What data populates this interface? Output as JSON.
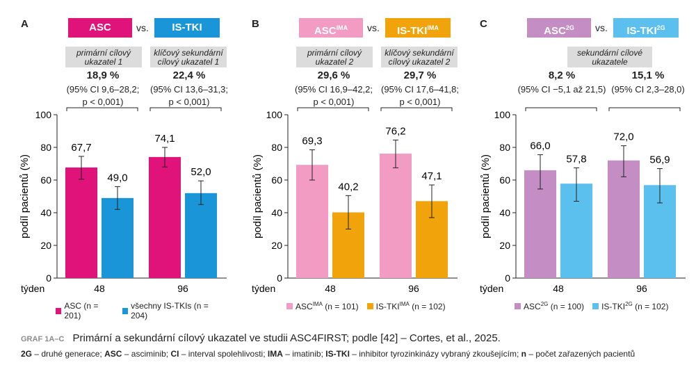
{
  "colors": {
    "asc": "#e0137a",
    "istki": "#1a96d8",
    "asc_ima": "#f29cc4",
    "istki_ima": "#f0a30a",
    "asc_2g": "#c48dc4",
    "istki_2g": "#5bc0ee"
  },
  "panels": [
    {
      "letter": "A",
      "left_tag": "ASC",
      "left_sup": "",
      "vs": "vs.",
      "right_tag": "IS-TKI",
      "right_sup": "",
      "endpoints": [
        {
          "label": "primární cílový ukazatel 1",
          "pct": "18,9 %",
          "ci": "(95% CI 9,6–28,2;",
          "p": "p < 0,001)"
        },
        {
          "label": "klíčový sekundární cílový ukazatel 1",
          "pct": "22,4 %",
          "ci": "(95% CI 13,6–31,3;",
          "p": "p < 0,001)"
        }
      ],
      "legend": [
        {
          "text": "ASC (n = 201)",
          "color_key": "asc"
        },
        {
          "text": "všechny IS-TKIs (n = 204)",
          "color_key": "istki"
        }
      ]
    },
    {
      "letter": "B",
      "left_tag": "ASC",
      "left_sup": "IMA",
      "vs": "vs.",
      "right_tag": "IS-TKI",
      "right_sup": "IMA",
      "endpoints": [
        {
          "label": "primární cílový ukazatel 2",
          "pct": "29,6 %",
          "ci": "(95% CI 16,9–42,2;",
          "p": "p < 0,001)"
        },
        {
          "label": "klíčový sekundární cílový ukazatel 2",
          "pct": "29,7 %",
          "ci": "(95% CI 17,6–41,8;",
          "p": "p < 0,001)"
        }
      ],
      "legend": [
        {
          "text": "ASC",
          "sup": "IMA",
          "rest": " (n = 101)",
          "color_key": "asc_ima"
        },
        {
          "text": "IS-TKI",
          "sup": "IMA",
          "rest": " (n = 102)",
          "color_key": "istki_ima"
        }
      ]
    },
    {
      "letter": "C",
      "left_tag": "ASC",
      "left_sup": "2G",
      "vs": "vs.",
      "right_tag": "IS-TKI",
      "right_sup": "2G",
      "endpoints": [
        {
          "label": "sekundární cílové ukazatele",
          "pct": "8,2 %",
          "ci": "(95% CI −5,1 až 21,5)",
          "p": ""
        },
        {
          "label": "",
          "pct": "15,1 %",
          "ci": "(95% CI 2,3–28,0)",
          "p": ""
        }
      ],
      "legend": [
        {
          "text": "ASC",
          "sup": "2G",
          "rest": " (n = 100)",
          "color_key": "asc_2g"
        },
        {
          "text": "IS-TKI",
          "sup": "2G",
          "rest": " (n = 102)",
          "color_key": "istki_2g"
        }
      ]
    }
  ],
  "chart_data": [
    {
      "type": "bar",
      "title": "A",
      "ylabel": "podíl pacientů (%)",
      "xlabel": "týden",
      "ylim": [
        0,
        100
      ],
      "yticks": [
        0,
        20,
        40,
        60,
        80,
        100
      ],
      "categories": [
        "48",
        "96"
      ],
      "series": [
        {
          "name": "ASC (n = 201)",
          "color_key": "asc",
          "values": [
            67.7,
            74.1
          ],
          "labels": [
            "67,7",
            "74,1"
          ],
          "err_low": [
            60.5,
            68.0
          ],
          "err_high": [
            74.5,
            80.0
          ]
        },
        {
          "name": "všechny IS-TKIs (n = 204)",
          "color_key": "istki",
          "values": [
            49.0,
            52.0
          ],
          "labels": [
            "49,0",
            "52,0"
          ],
          "err_low": [
            42.0,
            45.0
          ],
          "err_high": [
            56.0,
            59.5
          ]
        }
      ]
    },
    {
      "type": "bar",
      "title": "B",
      "ylabel": "podíl pacientů (%)",
      "xlabel": "týden",
      "ylim": [
        0,
        100
      ],
      "yticks": [
        0,
        20,
        40,
        60,
        80,
        100
      ],
      "categories": [
        "48",
        "96"
      ],
      "series": [
        {
          "name": "ASC IMA (n = 101)",
          "color_key": "asc_ima",
          "values": [
            69.3,
            76.2
          ],
          "labels": [
            "69,3",
            "76,2"
          ],
          "err_low": [
            60.0,
            67.5
          ],
          "err_high": [
            78.5,
            84.5
          ]
        },
        {
          "name": "IS-TKI IMA (n = 102)",
          "color_key": "istki_ima",
          "values": [
            40.2,
            47.1
          ],
          "labels": [
            "40,2",
            "47,1"
          ],
          "err_low": [
            30.0,
            37.0
          ],
          "err_high": [
            50.5,
            57.0
          ]
        }
      ]
    },
    {
      "type": "bar",
      "title": "C",
      "ylabel": "podíl pacientů (%)",
      "xlabel": "týden",
      "ylim": [
        0,
        100
      ],
      "yticks": [
        0,
        20,
        40,
        60,
        80,
        100
      ],
      "categories": [
        "48",
        "96"
      ],
      "series": [
        {
          "name": "ASC 2G (n = 100)",
          "color_key": "asc_2g",
          "values": [
            66.0,
            72.0
          ],
          "labels": [
            "66,0",
            "72,0"
          ],
          "err_low": [
            54.5,
            62.0
          ],
          "err_high": [
            75.5,
            81.0
          ]
        },
        {
          "name": "IS-TKI 2G (n = 102)",
          "color_key": "istki_2g",
          "values": [
            57.8,
            56.9
          ],
          "labels": [
            "57,8",
            "56,9"
          ],
          "err_low": [
            47.0,
            46.0
          ],
          "err_high": [
            67.5,
            67.0
          ]
        }
      ]
    }
  ],
  "footer": {
    "graf_label": "GRAF 1A–C",
    "title": "Primární a sekundární cílový ukazatel ve studii ASC4FIRST; podle [42] – Cortes, et al., 2025.",
    "abbrev": [
      {
        "k": "2G",
        "v": " – druhé generace; "
      },
      {
        "k": "ASC",
        "v": " – asciminib; "
      },
      {
        "k": "CI",
        "v": " – interval spolehlivosti; "
      },
      {
        "k": "IMA",
        "v": " – imatinib; "
      },
      {
        "k": "IS-TKI",
        "v": " – inhibitor tyrozinkinázy vybraný zkoušejícím; "
      },
      {
        "k": "n",
        "v": " – počet zařazených pacientů"
      }
    ]
  }
}
